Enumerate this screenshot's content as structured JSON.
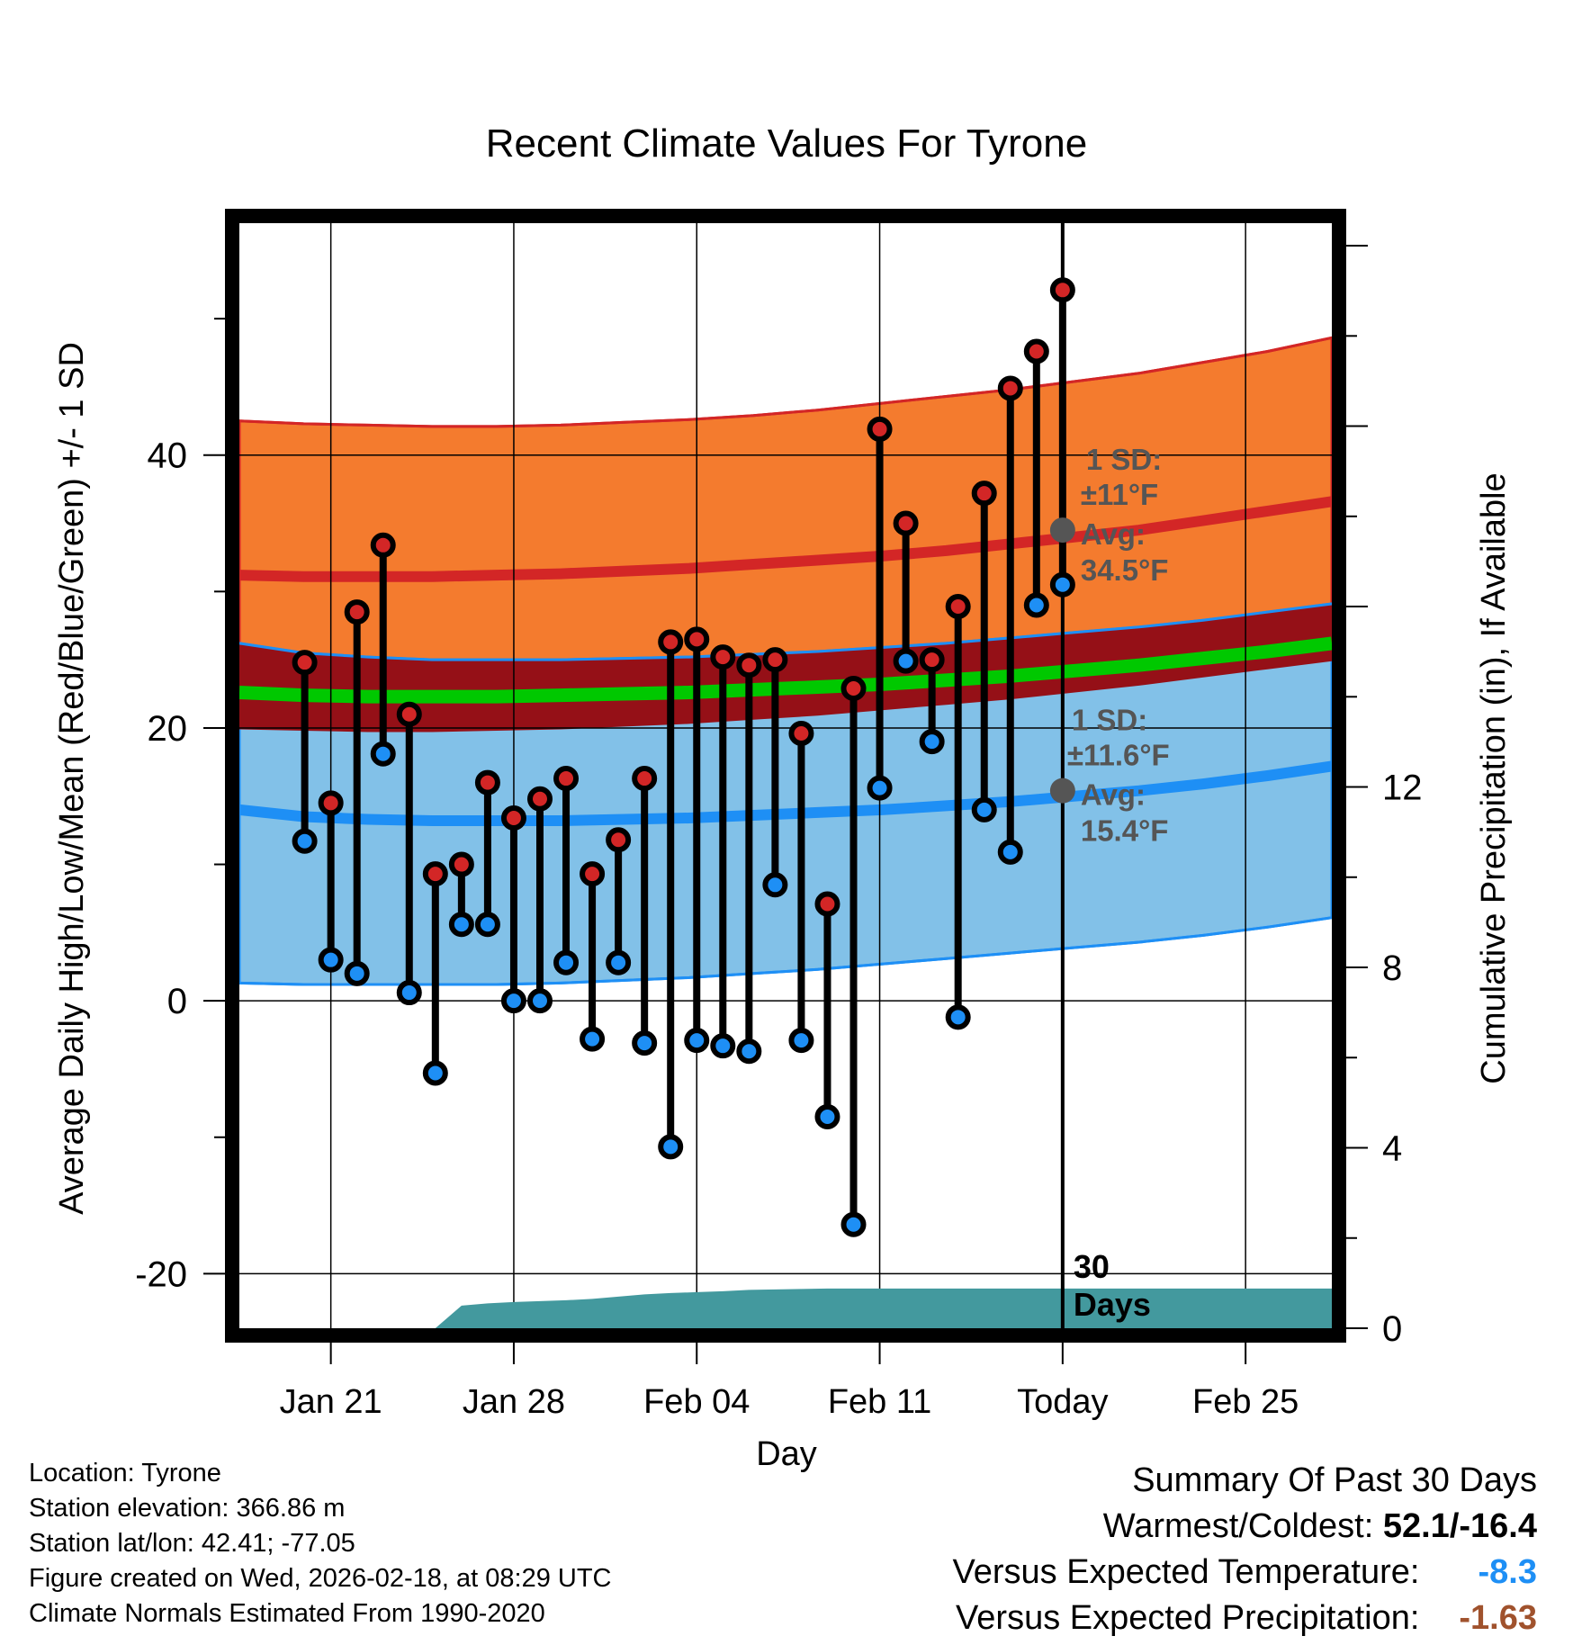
{
  "chart_data": {
    "type": "line",
    "title": "Recent Climate Values For Tyrone",
    "xlabel": "Day",
    "ylabel": "Average Daily High/Low/Mean (Red/Blue/Green) +/- 1 SD",
    "y2label": "Cumulative Precipitation (in), If Available",
    "ylim": [
      -24,
      57
    ],
    "y_ticks": [
      -20,
      0,
      20,
      40
    ],
    "y2lim": [
      0,
      24.5
    ],
    "y2_ticks": [
      0,
      4,
      8,
      12
    ],
    "x_tick_days": [
      2,
      9,
      16,
      23,
      30,
      37
    ],
    "x_tick_labels": [
      "Jan 21",
      "Jan 28",
      "Feb 04",
      "Feb 11",
      "Today",
      "Feb 25"
    ],
    "xlim_days": [
      -1.5,
      40.3
    ],
    "today_day": 30,
    "daily_high": [
      24.8,
      14.5,
      28.5,
      33.4,
      21.0,
      9.3,
      10.0,
      16.0,
      13.4,
      14.8,
      16.3,
      9.3,
      11.8,
      16.3,
      26.3,
      26.5,
      25.2,
      24.6,
      25.0,
      19.6,
      7.1,
      22.9,
      41.9,
      35.0,
      25.0,
      28.9,
      37.2,
      44.9,
      47.6,
      52.1
    ],
    "daily_low": [
      11.7,
      3.0,
      2.0,
      18.1,
      0.6,
      -5.3,
      5.6,
      5.6,
      0.0,
      0.0,
      2.8,
      -2.8,
      2.8,
      -3.1,
      -10.7,
      -2.9,
      -3.3,
      -3.7,
      8.5,
      -2.9,
      -8.5,
      -16.4,
      15.6,
      24.9,
      19.0,
      -1.2,
      14.0,
      10.9,
      29.0,
      30.5
    ],
    "normal_high": [
      31.2,
      31.1,
      31.1,
      31.1,
      31.2,
      31.3,
      31.5,
      31.7,
      32.0,
      32.3,
      32.6,
      33.0,
      33.5,
      34.0,
      34.5,
      35.2,
      35.9,
      36.6
    ],
    "normal_high_plus_sd": [
      42.5,
      42.3,
      42.2,
      42.1,
      42.1,
      42.2,
      42.4,
      42.6,
      42.9,
      43.3,
      43.8,
      44.3,
      44.8,
      45.4,
      46.0,
      46.8,
      47.6,
      48.6
    ],
    "normal_high_minus_sd": [
      19.9,
      19.8,
      19.7,
      19.7,
      19.8,
      19.9,
      20.1,
      20.3,
      20.6,
      20.9,
      21.3,
      21.7,
      22.1,
      22.6,
      23.1,
      23.7,
      24.3,
      24.9
    ],
    "normal_low": [
      14.0,
      13.5,
      13.3,
      13.2,
      13.2,
      13.2,
      13.3,
      13.4,
      13.6,
      13.8,
      14.0,
      14.3,
      14.6,
      15.0,
      15.4,
      15.9,
      16.5,
      17.2
    ],
    "normal_low_plus_sd": [
      26.2,
      25.5,
      25.2,
      25.0,
      25.0,
      25.0,
      25.1,
      25.2,
      25.4,
      25.6,
      25.9,
      26.2,
      26.6,
      27.0,
      27.4,
      27.9,
      28.5,
      29.1
    ],
    "normal_low_minus_sd": [
      1.3,
      1.2,
      1.2,
      1.2,
      1.2,
      1.3,
      1.5,
      1.7,
      2.0,
      2.3,
      2.7,
      3.1,
      3.5,
      3.9,
      4.3,
      4.8,
      5.4,
      6.1
    ],
    "normal_mean": [
      22.6,
      22.4,
      22.3,
      22.3,
      22.3,
      22.4,
      22.5,
      22.6,
      22.8,
      23.0,
      23.2,
      23.5,
      23.8,
      24.2,
      24.6,
      25.1,
      25.6,
      26.2
    ],
    "cumulative_precip": [
      0,
      0,
      0,
      0,
      0,
      0,
      0.5,
      0.55,
      0.58,
      0.6,
      0.62,
      0.65,
      0.7,
      0.75,
      0.78,
      0.8,
      0.82,
      0.85,
      0.86,
      0.87,
      0.88,
      0.88,
      0.88,
      0.88,
      0.88,
      0.88,
      0.88,
      0.88,
      0.88,
      0.88,
      0.88
    ],
    "annotations": {
      "high_sd_label": "1 SD:",
      "high_sd_value": "±11°F",
      "high_avg_label": "Avg:",
      "high_avg_value": "34.5°F",
      "low_sd_label": "1 SD:",
      "low_sd_value": "±11.6°F",
      "low_avg_label": "Avg:",
      "low_avg_value": "15.4°F",
      "days_number": "30",
      "days_word": "Days"
    },
    "colors": {
      "high_band": "#f47b2e",
      "high_line": "#d32626",
      "low_band": "#82c1e8",
      "low_line": "#1e8ff5",
      "overlap": "#951017",
      "mean": "#00c800",
      "precip": "#43999e",
      "high_dot": "#d32626",
      "low_dot": "#1e8ff5",
      "annotation": "#555555"
    }
  },
  "info": {
    "location": "Location: Tyrone",
    "elevation": "Station elevation: 366.86 m",
    "latlon": "Station lat/lon: 42.41; -77.05",
    "created": "Figure created on Wed, 2026-02-18, at 08:29 UTC",
    "normals": "Climate Normals Estimated From 1990-2020"
  },
  "summary": {
    "heading": "Summary Of Past 30 Days",
    "warmest_label": "Warmest/Coldest:",
    "warmest_value": "52.1/-16.4",
    "temp_label": "Versus Expected Temperature:",
    "temp_value": "-8.3",
    "temp_color": "#1e8ff5",
    "precip_label": "Versus Expected Precipitation:",
    "precip_value": "-1.63",
    "precip_color": "#a0522d"
  }
}
